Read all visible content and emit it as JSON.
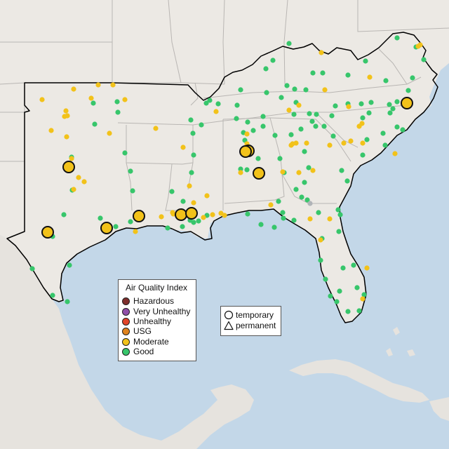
{
  "map": {
    "colors": {
      "water": "#c3d7e8",
      "land": "#ece9e4",
      "land_outside": "#e6e3de",
      "border": "#b9b6b3",
      "region_outline": "#000000"
    }
  },
  "legend": {
    "title": "Air Quality Index",
    "categories": [
      {
        "label": "Hazardous",
        "color": "#7e2f2c"
      },
      {
        "label": "Very Unhealthy",
        "color": "#8e4fa8"
      },
      {
        "label": "Unhealthy",
        "color": "#e2452a"
      },
      {
        "label": "USG",
        "color": "#e0831d"
      },
      {
        "label": "Moderate",
        "color": "#f2c21a"
      },
      {
        "label": "Good",
        "color": "#37c66b"
      }
    ]
  },
  "site_types": {
    "temporary": "temporary",
    "permanent": "permanent"
  },
  "monitors": {
    "good": [
      [
        102,
        224
      ],
      [
        133,
        147
      ],
      [
        167,
        145
      ],
      [
        168,
        160
      ],
      [
        135,
        177
      ],
      [
        178,
        218
      ],
      [
        186,
        244
      ],
      [
        189,
        272
      ],
      [
        103,
        271
      ],
      [
        91,
        306
      ],
      [
        75,
        337
      ],
      [
        46,
        383
      ],
      [
        75,
        421
      ],
      [
        96,
        430
      ],
      [
        99,
        378
      ],
      [
        143,
        311
      ],
      [
        165,
        323
      ],
      [
        186,
        316
      ],
      [
        239,
        325
      ],
      [
        260,
        323
      ],
      [
        271,
        314
      ],
      [
        276,
        317
      ],
      [
        283,
        315
      ],
      [
        295,
        307
      ],
      [
        261,
        287
      ],
      [
        245,
        273
      ],
      [
        273,
        246
      ],
      [
        276,
        221
      ],
      [
        275,
        190
      ],
      [
        287,
        178
      ],
      [
        272,
        171
      ],
      [
        294,
        147
      ],
      [
        311,
        148
      ],
      [
        299,
        143
      ],
      [
        337,
        169
      ],
      [
        338,
        150
      ],
      [
        343,
        128
      ],
      [
        353,
        174
      ],
      [
        349,
        200
      ],
      [
        343,
        241
      ],
      [
        352,
        242
      ],
      [
        353,
        209
      ],
      [
        347,
        189
      ],
      [
        361,
        186
      ],
      [
        375,
        180
      ],
      [
        375,
        166
      ],
      [
        380,
        132
      ],
      [
        379,
        98
      ],
      [
        389,
        86
      ],
      [
        412,
        62
      ],
      [
        409,
        122
      ],
      [
        401,
        139
      ],
      [
        422,
        146
      ],
      [
        436,
        128
      ],
      [
        446,
        104
      ],
      [
        460,
        104
      ],
      [
        496,
        107
      ],
      [
        521,
        87
      ],
      [
        550,
        115
      ],
      [
        582,
        129
      ],
      [
        566,
        145
      ],
      [
        515,
        148
      ],
      [
        517,
        168
      ],
      [
        526,
        161
      ],
      [
        529,
        146
      ],
      [
        496,
        148
      ],
      [
        478,
        151
      ],
      [
        473,
        165
      ],
      [
        475,
        194
      ],
      [
        462,
        180
      ],
      [
        450,
        180
      ],
      [
        451,
        163
      ],
      [
        441,
        162
      ],
      [
        419,
        163
      ],
      [
        415,
        192
      ],
      [
        429,
        184
      ],
      [
        434,
        216
      ],
      [
        440,
        239
      ],
      [
        422,
        270
      ],
      [
        399,
        226
      ],
      [
        405,
        246
      ],
      [
        392,
        193
      ],
      [
        368,
        226
      ],
      [
        397,
        287
      ],
      [
        403,
        303
      ],
      [
        404,
        311
      ],
      [
        372,
        320
      ],
      [
        391,
        324
      ],
      [
        353,
        305
      ],
      [
        419,
        314
      ],
      [
        430,
        281
      ],
      [
        434,
        260
      ],
      [
        438,
        285
      ],
      [
        454,
        303
      ],
      [
        459,
        340
      ],
      [
        457,
        371
      ],
      [
        464,
        398
      ],
      [
        471,
        422
      ],
      [
        480,
        430
      ],
      [
        484,
        415
      ],
      [
        489,
        382
      ],
      [
        504,
        378
      ],
      [
        509,
        410
      ],
      [
        519,
        420
      ],
      [
        512,
        443
      ],
      [
        496,
        444
      ],
      [
        483,
        330
      ],
      [
        485,
        306
      ],
      [
        482,
        299
      ],
      [
        495,
        258
      ],
      [
        487,
        243
      ],
      [
        517,
        221
      ],
      [
        523,
        199
      ],
      [
        549,
        207
      ],
      [
        546,
        190
      ],
      [
        574,
        185
      ],
      [
        566,
        181
      ],
      [
        555,
        149
      ],
      [
        556,
        161
      ],
      [
        560,
        155
      ],
      [
        588,
        111
      ],
      [
        604,
        85
      ],
      [
        593,
        67
      ],
      [
        566,
        54
      ],
      [
        445,
        173
      ],
      [
        420,
        127
      ]
    ],
    "moderate": [
      [
        60,
        142
      ],
      [
        105,
        127
      ],
      [
        140,
        121
      ],
      [
        161,
        121
      ],
      [
        178,
        142
      ],
      [
        130,
        140
      ],
      [
        94,
        158
      ],
      [
        92,
        166
      ],
      [
        96,
        165
      ],
      [
        73,
        186
      ],
      [
        95,
        195
      ],
      [
        156,
        190
      ],
      [
        222,
        183
      ],
      [
        102,
        226
      ],
      [
        112,
        253
      ],
      [
        120,
        259
      ],
      [
        105,
        270
      ],
      [
        193,
        330
      ],
      [
        230,
        309
      ],
      [
        246,
        303
      ],
      [
        261,
        210
      ],
      [
        270,
        265
      ],
      [
        276,
        289
      ],
      [
        303,
        306
      ],
      [
        315,
        304
      ],
      [
        343,
        246
      ],
      [
        352,
        205
      ],
      [
        352,
        191
      ],
      [
        386,
        292
      ],
      [
        403,
        245
      ],
      [
        415,
        207
      ],
      [
        422,
        204
      ],
      [
        437,
        204
      ],
      [
        490,
        204
      ],
      [
        500,
        201
      ],
      [
        517,
        204
      ],
      [
        516,
        176
      ],
      [
        512,
        180
      ],
      [
        497,
        152
      ],
      [
        527,
        110
      ],
      [
        458,
        75
      ],
      [
        412,
        157
      ],
      [
        417,
        205
      ],
      [
        426,
        246
      ],
      [
        446,
        243
      ],
      [
        442,
        312
      ],
      [
        457,
        342
      ],
      [
        470,
        312
      ],
      [
        517,
        426
      ],
      [
        523,
        382
      ],
      [
        596,
        66
      ],
      [
        599,
        64
      ],
      [
        563,
        219
      ],
      [
        295,
        279
      ],
      [
        320,
        307
      ],
      [
        247,
        305
      ],
      [
        290,
        310
      ],
      [
        308,
        159
      ],
      [
        426,
        150
      ],
      [
        463,
        128
      ],
      [
        470,
        207
      ]
    ],
    "moderate_temporary": [
      [
        98,
        238
      ],
      [
        68,
        331
      ],
      [
        152,
        325
      ],
      [
        198,
        308
      ],
      [
        258,
        306
      ],
      [
        273,
        304
      ],
      [
        354,
        215
      ],
      [
        350,
        216
      ],
      [
        369,
        247
      ],
      [
        580,
        147
      ]
    ],
    "unclassified": [
      [
        442,
        290
      ]
    ]
  }
}
